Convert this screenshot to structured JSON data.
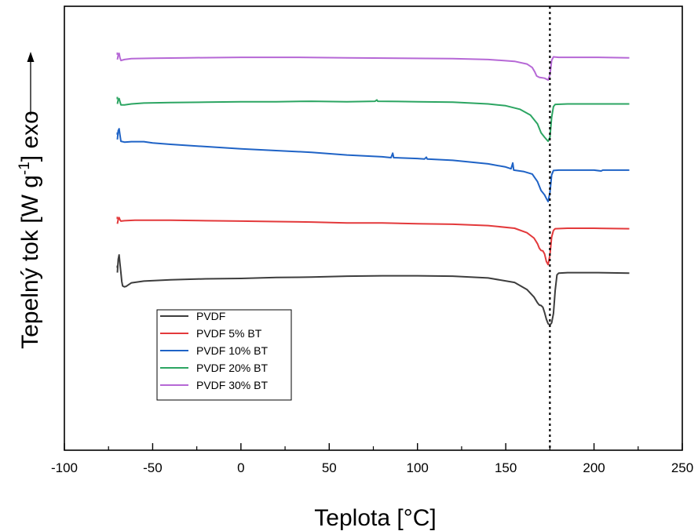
{
  "chart_data": {
    "type": "line",
    "title": "",
    "xlabel": "Teplota [°C]",
    "ylabel_parts": {
      "pre": "Tepelný tok [W g",
      "sup": "-1",
      "post": "] exo"
    },
    "xlim": [
      -100,
      250
    ],
    "x_ticks": [
      "-100",
      "-50",
      "0",
      "50",
      "100",
      "150",
      "200",
      "250"
    ],
    "y_ticks_shown": false,
    "y_units": "arbitrary (curves offset vertically, higher = exo)",
    "reference_line": {
      "x": 175,
      "style": "dotted",
      "color": "#000000"
    },
    "legend_position": "lower-left",
    "series": [
      {
        "name": "PVDF",
        "color": "#3d3d3d",
        "points": [
          [
            -70,
            60
          ],
          [
            -69.5,
            57
          ],
          [
            -69,
            56
          ],
          [
            -68.5,
            58
          ],
          [
            -68,
            60
          ],
          [
            -67.5,
            62
          ],
          [
            -67,
            63
          ],
          [
            -66,
            63.2
          ],
          [
            -65,
            63.1
          ],
          [
            -62,
            62.3
          ],
          [
            -55,
            61.9
          ],
          [
            -40,
            61.6
          ],
          [
            -20,
            61.4
          ],
          [
            0,
            61.3
          ],
          [
            20,
            61.1
          ],
          [
            40,
            61
          ],
          [
            60,
            60.8
          ],
          [
            80,
            60.7
          ],
          [
            100,
            60.7
          ],
          [
            120,
            60.8
          ],
          [
            140,
            61.2
          ],
          [
            155,
            62.2
          ],
          [
            162,
            63.8
          ],
          [
            166,
            65.5
          ],
          [
            168,
            66.8
          ],
          [
            169,
            67.3
          ],
          [
            170,
            67.4
          ],
          [
            171,
            67.8
          ],
          [
            172,
            69
          ],
          [
            173,
            70.5
          ],
          [
            174,
            71.5
          ],
          [
            175,
            71.8
          ],
          [
            176,
            71.3
          ],
          [
            177,
            69.2
          ],
          [
            178,
            64
          ],
          [
            179,
            60.5
          ],
          [
            180,
            60.1
          ],
          [
            185,
            60
          ],
          [
            200,
            60
          ],
          [
            220,
            60.1
          ]
        ]
      },
      {
        "name": "PVDF 5% BT",
        "color": "#e3393b",
        "points": [
          [
            -70,
            49
          ],
          [
            -69.5,
            48
          ],
          [
            -69,
            47.6
          ],
          [
            -68.5,
            48.1
          ],
          [
            -68,
            48.4
          ],
          [
            -66,
            48.3
          ],
          [
            -60,
            48.2
          ],
          [
            -40,
            48.2
          ],
          [
            -20,
            48.3
          ],
          [
            0,
            48.4
          ],
          [
            20,
            48.5
          ],
          [
            40,
            48.6
          ],
          [
            60,
            48.8
          ],
          [
            80,
            48.8
          ],
          [
            100,
            49
          ],
          [
            120,
            49.1
          ],
          [
            140,
            49.4
          ],
          [
            155,
            50
          ],
          [
            162,
            51
          ],
          [
            166,
            52.2
          ],
          [
            168,
            53.5
          ],
          [
            169,
            54.5
          ],
          [
            170,
            55
          ],
          [
            171,
            55.1
          ],
          [
            172,
            55.8
          ],
          [
            173,
            57.5
          ],
          [
            174,
            58.2
          ],
          [
            175,
            56
          ],
          [
            176,
            52
          ],
          [
            177,
            50.5
          ],
          [
            178,
            50.1
          ],
          [
            185,
            50
          ],
          [
            200,
            50
          ],
          [
            220,
            50.1
          ]
        ]
      },
      {
        "name": "PVDF 10% BT",
        "color": "#1f63c6",
        "points": [
          [
            -70,
            30
          ],
          [
            -69.5,
            28
          ],
          [
            -69,
            27.6
          ],
          [
            -68.5,
            29
          ],
          [
            -68,
            30.4
          ],
          [
            -66,
            30.6
          ],
          [
            -62,
            30.5
          ],
          [
            -55,
            30.5
          ],
          [
            -50,
            30.8
          ],
          [
            -40,
            31.1
          ],
          [
            -20,
            31.6
          ],
          [
            0,
            32.1
          ],
          [
            20,
            32.5
          ],
          [
            40,
            32.9
          ],
          [
            60,
            33.5
          ],
          [
            80,
            33.9
          ],
          [
            85,
            34.1
          ],
          [
            86,
            33.1
          ],
          [
            86.5,
            34.1
          ],
          [
            100,
            34.3
          ],
          [
            104,
            34.4
          ],
          [
            105,
            34
          ],
          [
            105.5,
            34.4
          ],
          [
            120,
            34.7
          ],
          [
            140,
            35.5
          ],
          [
            150,
            36.2
          ],
          [
            153,
            36.6
          ],
          [
            154,
            35.3
          ],
          [
            154.5,
            36.9
          ],
          [
            160,
            37.2
          ],
          [
            165,
            37.8
          ],
          [
            168,
            39.5
          ],
          [
            170,
            41.5
          ],
          [
            172,
            42.5
          ],
          [
            173,
            43.3
          ],
          [
            174,
            44
          ],
          [
            175,
            42
          ],
          [
            176,
            38
          ],
          [
            177,
            37
          ],
          [
            180,
            36.9
          ],
          [
            200,
            36.9
          ],
          [
            204,
            37.1
          ],
          [
            205,
            36.9
          ],
          [
            220,
            36.9
          ]
        ]
      },
      {
        "name": "PVDF 20% BT",
        "color": "#2ca562",
        "points": [
          [
            -70,
            22
          ],
          [
            -69.5,
            21
          ],
          [
            -69,
            20.8
          ],
          [
            -68.5,
            21.5
          ],
          [
            -68,
            22.2
          ],
          [
            -66,
            22.2
          ],
          [
            -62,
            22
          ],
          [
            -55,
            21.8
          ],
          [
            -40,
            21.7
          ],
          [
            -20,
            21.6
          ],
          [
            0,
            21.5
          ],
          [
            20,
            21.5
          ],
          [
            40,
            21.4
          ],
          [
            60,
            21.5
          ],
          [
            76,
            21.4
          ],
          [
            77,
            21.1
          ],
          [
            77.5,
            21.4
          ],
          [
            100,
            21.5
          ],
          [
            120,
            21.6
          ],
          [
            140,
            22
          ],
          [
            150,
            22.4
          ],
          [
            158,
            23.2
          ],
          [
            164,
            24.5
          ],
          [
            168,
            26.5
          ],
          [
            170,
            28.5
          ],
          [
            172,
            29.5
          ],
          [
            174,
            30.4
          ],
          [
            175,
            29.5
          ],
          [
            176,
            25
          ],
          [
            177,
            22.6
          ],
          [
            178,
            22.1
          ],
          [
            185,
            22
          ],
          [
            200,
            22
          ],
          [
            220,
            22
          ]
        ]
      },
      {
        "name": "PVDF 30% BT",
        "color": "#b668d6",
        "points": [
          [
            -70,
            12
          ],
          [
            -69.5,
            11
          ],
          [
            -69,
            10.6
          ],
          [
            -68.5,
            11.6
          ],
          [
            -68,
            12.2
          ],
          [
            -66,
            12
          ],
          [
            -62,
            11.8
          ],
          [
            -50,
            11.7
          ],
          [
            -30,
            11.6
          ],
          [
            0,
            11.5
          ],
          [
            30,
            11.5
          ],
          [
            60,
            11.6
          ],
          [
            90,
            11.7
          ],
          [
            120,
            11.8
          ],
          [
            140,
            12
          ],
          [
            155,
            12.4
          ],
          [
            162,
            13
          ],
          [
            165,
            13.8
          ],
          [
            166.5,
            14.8
          ],
          [
            167.5,
            15.7
          ],
          [
            169,
            16
          ],
          [
            172,
            16.2
          ],
          [
            174,
            16.6
          ],
          [
            175,
            15.5
          ],
          [
            176,
            12.2
          ],
          [
            177,
            11.4
          ],
          [
            180,
            11.5
          ],
          [
            200,
            11.5
          ],
          [
            220,
            11.6
          ]
        ]
      }
    ]
  }
}
